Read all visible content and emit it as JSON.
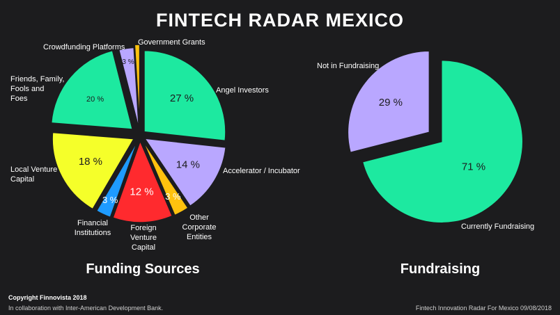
{
  "title": "FINTECH RADAR MEXICO",
  "footer": {
    "copyright": "Copyright Finnovista 2018",
    "collaboration": "In collaboration with Inter-American Development Bank.",
    "source": "Fintech Innovation Radar For Mexico 09/08/2018"
  },
  "chart_data": [
    {
      "type": "pie",
      "title": "Funding Sources",
      "slices": [
        {
          "label": "Angel Investors",
          "value": 27,
          "display": "27 %",
          "color": "#1de9a0"
        },
        {
          "label": "Accelerator / Incubator",
          "value": 14,
          "display": "14 %",
          "color": "#b9a7ff"
        },
        {
          "label": "Other Corporate Entities",
          "value": 3,
          "display": "3 %",
          "color": "#ffc20e"
        },
        {
          "label": "Foreign Venture Capital",
          "value": 12,
          "display": "12 %",
          "color": "#ff2a2e"
        },
        {
          "label": "Financial Institutions",
          "value": 3,
          "display": "3 %",
          "color": "#1e9bff"
        },
        {
          "label": "Local Venture Capital",
          "value": 18,
          "display": "18 %",
          "color": "#f5ff2a"
        },
        {
          "label": "Friends, Family, Fools and Foes",
          "value": 20,
          "display": "20 %",
          "color": "#1de9a0"
        },
        {
          "label": "Crowdfunding Platforms",
          "value": 3,
          "display": "3 %",
          "color": "#b9a7ff"
        },
        {
          "label": "Government Grants",
          "value": 1,
          "display": "1 %",
          "color": "#ffc20e"
        }
      ]
    },
    {
      "type": "pie",
      "title": "Fundraising",
      "slices": [
        {
          "label": "Currently Fundraising",
          "value": 71,
          "display": "71 %",
          "color": "#1de9a0"
        },
        {
          "label": "Not in Fundraising",
          "value": 29,
          "display": "29 %",
          "color": "#b9a7ff"
        }
      ]
    }
  ]
}
